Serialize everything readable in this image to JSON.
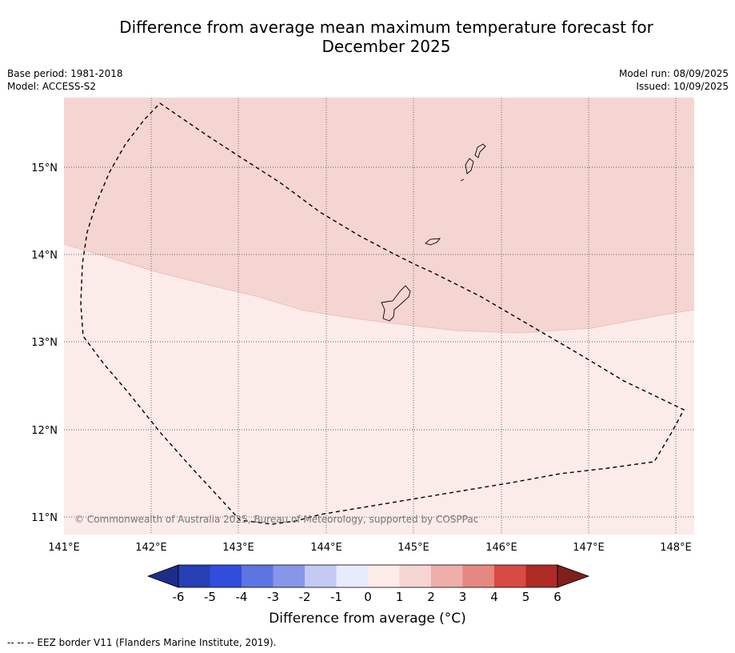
{
  "title_line1": "Difference from average mean maximum temperature forecast for",
  "title_line2": "December 2025",
  "meta_left": {
    "base_period": "Base period: 1981-2018",
    "model": "Model: ACCESS-S2"
  },
  "meta_right": {
    "model_run": "Model run: 08/09/2025",
    "issued": "Issued: 10/09/2025"
  },
  "map": {
    "lon_ticks": [
      "141°E",
      "142°E",
      "143°E",
      "144°E",
      "145°E",
      "146°E",
      "147°E",
      "148°E"
    ],
    "lat_ticks": [
      "15°N",
      "14°N",
      "13°N",
      "12°N",
      "11°N"
    ],
    "copyright": "© Commonwealth of Australia 2025, Bureau of Meteorology, supported by COSPPac",
    "region_colors": {
      "band_1_2": "#f5d5d2",
      "band_0_1": "#fbebe9"
    }
  },
  "colorbar": {
    "ticks": [
      "-6",
      "-5",
      "-4",
      "-3",
      "-2",
      "-1",
      "0",
      "1",
      "2",
      "3",
      "4",
      "5",
      "6"
    ],
    "colors": [
      "#1f2d8a",
      "#263fb5",
      "#314ddc",
      "#5d74e3",
      "#8796e9",
      "#c3c9f3",
      "#e8ebfb",
      "#fbebe9",
      "#f5d5d2",
      "#eeaeaa",
      "#e78782",
      "#d94a42",
      "#ae2b25",
      "#7f1f1c"
    ],
    "label": "Difference from average (°C)"
  },
  "footer": "--  --  -- EEZ border V11 (Flanders Marine Institute, 2019)."
}
